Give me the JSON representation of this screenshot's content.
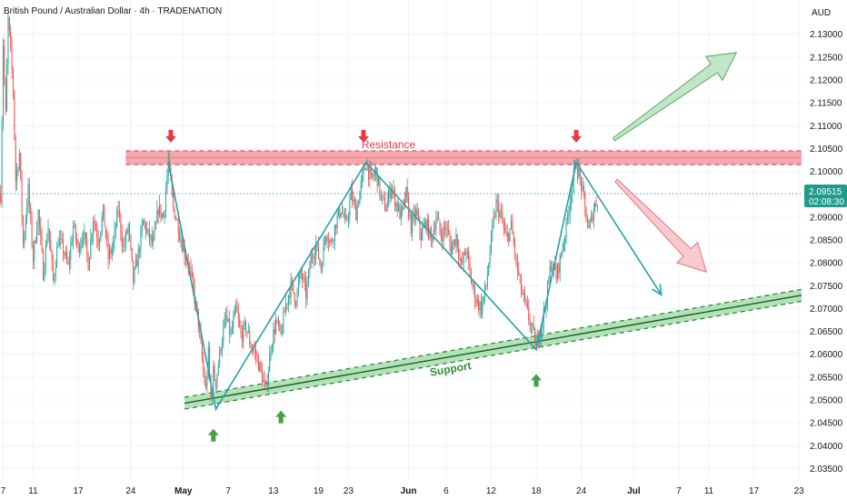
{
  "chart_data": {
    "type": "candlestick",
    "title": "British Pound / Australian Dollar · 4h · TRADENATION",
    "currency": "AUD",
    "ylim": [
      2.0325,
      2.1375
    ],
    "y_ticks": [
      "2.13000",
      "2.12500",
      "2.12000",
      "2.11500",
      "2.11000",
      "2.10500",
      "2.10000",
      "2.09500",
      "2.09000",
      "2.08500",
      "2.08000",
      "2.07500",
      "2.07000",
      "2.06500",
      "2.06000",
      "2.05500",
      "2.05000",
      "2.04500",
      "2.04000",
      "2.03500"
    ],
    "x_ticks": [
      {
        "label": "7",
        "bar": 2,
        "month": false
      },
      {
        "label": "11",
        "bar": 26,
        "month": false
      },
      {
        "label": "17",
        "bar": 62,
        "month": false
      },
      {
        "label": "24",
        "bar": 104,
        "month": false
      },
      {
        "label": "May",
        "bar": 146,
        "month": true
      },
      {
        "label": "7",
        "bar": 182,
        "month": false
      },
      {
        "label": "13",
        "bar": 218,
        "month": false
      },
      {
        "label": "19",
        "bar": 254,
        "month": false
      },
      {
        "label": "23",
        "bar": 278,
        "month": false
      },
      {
        "label": "Jun",
        "bar": 326,
        "month": true
      },
      {
        "label": "6",
        "bar": 356,
        "month": false
      },
      {
        "label": "12",
        "bar": 392,
        "month": false
      },
      {
        "label": "18",
        "bar": 428,
        "month": false
      },
      {
        "label": "24",
        "bar": 464,
        "month": false
      },
      {
        "label": "Jul",
        "bar": 506,
        "month": true
      },
      {
        "label": "7",
        "bar": 542,
        "month": false
      },
      {
        "label": "11",
        "bar": 566,
        "month": false
      },
      {
        "label": "17",
        "bar": 602,
        "month": false
      },
      {
        "label": "23",
        "bar": 638,
        "month": false
      }
    ],
    "total_bars": 642,
    "price_anchors": [
      [
        0,
        2.095
      ],
      [
        2,
        2.128
      ],
      [
        4,
        2.112
      ],
      [
        6,
        2.133
      ],
      [
        8,
        2.126
      ],
      [
        10,
        2.118
      ],
      [
        12,
        2.098
      ],
      [
        15,
        2.104
      ],
      [
        18,
        2.084
      ],
      [
        22,
        2.096
      ],
      [
        26,
        2.081
      ],
      [
        30,
        2.091
      ],
      [
        34,
        2.078
      ],
      [
        38,
        2.088
      ],
      [
        42,
        2.076
      ],
      [
        46,
        2.085
      ],
      [
        50,
        2.083
      ],
      [
        54,
        2.079
      ],
      [
        58,
        2.088
      ],
      [
        62,
        2.083
      ],
      [
        66,
        2.087
      ],
      [
        70,
        2.08
      ],
      [
        74,
        2.09
      ],
      [
        78,
        2.085
      ],
      [
        82,
        2.091
      ],
      [
        86,
        2.081
      ],
      [
        90,
        2.084
      ],
      [
        94,
        2.092
      ],
      [
        98,
        2.083
      ],
      [
        102,
        2.088
      ],
      [
        106,
        2.076
      ],
      [
        110,
        2.082
      ],
      [
        114,
        2.089
      ],
      [
        118,
        2.086
      ],
      [
        122,
        2.084
      ],
      [
        126,
        2.092
      ],
      [
        130,
        2.09
      ],
      [
        134,
        2.102
      ],
      [
        138,
        2.092
      ],
      [
        142,
        2.088
      ],
      [
        146,
        2.083
      ],
      [
        150,
        2.08
      ],
      [
        154,
        2.074
      ],
      [
        158,
        2.067
      ],
      [
        162,
        2.056
      ],
      [
        164,
        2.052
      ],
      [
        166,
        2.06
      ],
      [
        168,
        2.05
      ],
      [
        170,
        2.056
      ],
      [
        172,
        2.054
      ],
      [
        176,
        2.062
      ],
      [
        180,
        2.068
      ],
      [
        184,
        2.064
      ],
      [
        188,
        2.07
      ],
      [
        192,
        2.064
      ],
      [
        196,
        2.066
      ],
      [
        200,
        2.062
      ],
      [
        204,
        2.06
      ],
      [
        208,
        2.056
      ],
      [
        212,
        2.052
      ],
      [
        216,
        2.062
      ],
      [
        220,
        2.067
      ],
      [
        224,
        2.064
      ],
      [
        228,
        2.071
      ],
      [
        232,
        2.075
      ],
      [
        236,
        2.072
      ],
      [
        240,
        2.078
      ],
      [
        244,
        2.073
      ],
      [
        248,
        2.081
      ],
      [
        252,
        2.084
      ],
      [
        256,
        2.079
      ],
      [
        260,
        2.087
      ],
      [
        264,
        2.084
      ],
      [
        268,
        2.089
      ],
      [
        272,
        2.092
      ],
      [
        276,
        2.088
      ],
      [
        280,
        2.095
      ],
      [
        284,
        2.091
      ],
      [
        288,
        2.097
      ],
      [
        292,
        2.102
      ],
      [
        296,
        2.098
      ],
      [
        300,
        2.1
      ],
      [
        304,
        2.094
      ],
      [
        308,
        2.092
      ],
      [
        312,
        2.097
      ],
      [
        316,
        2.093
      ],
      [
        320,
        2.09
      ],
      [
        324,
        2.095
      ],
      [
        328,
        2.088
      ],
      [
        332,
        2.091
      ],
      [
        336,
        2.086
      ],
      [
        340,
        2.089
      ],
      [
        344,
        2.085
      ],
      [
        348,
        2.09
      ],
      [
        352,
        2.086
      ],
      [
        356,
        2.088
      ],
      [
        360,
        2.083
      ],
      [
        364,
        2.086
      ],
      [
        368,
        2.079
      ],
      [
        372,
        2.083
      ],
      [
        376,
        2.076
      ],
      [
        380,
        2.072
      ],
      [
        384,
        2.07
      ],
      [
        388,
        2.075
      ],
      [
        392,
        2.085
      ],
      [
        396,
        2.093
      ],
      [
        400,
        2.09
      ],
      [
        404,
        2.085
      ],
      [
        408,
        2.088
      ],
      [
        412,
        2.08
      ],
      [
        416,
        2.074
      ],
      [
        420,
        2.07
      ],
      [
        424,
        2.066
      ],
      [
        428,
        2.062
      ],
      [
        432,
        2.066
      ],
      [
        436,
        2.072
      ],
      [
        440,
        2.08
      ],
      [
        444,
        2.077
      ],
      [
        448,
        2.082
      ],
      [
        452,
        2.088
      ],
      [
        456,
        2.096
      ],
      [
        460,
        2.102
      ],
      [
        464,
        2.097
      ],
      [
        468,
        2.09
      ],
      [
        470,
        2.087
      ],
      [
        474,
        2.092
      ],
      [
        477,
        2.094
      ]
    ],
    "last_price": "2.09515",
    "countdown": "02:08:30",
    "resistance_zone": {
      "low": 2.1015,
      "high": 2.1045,
      "label": "Resistance"
    },
    "support_channel": {
      "start": [
        147,
        2.0493
      ],
      "end": [
        642,
        2.073
      ],
      "half_width": 0.0013,
      "label": "Support"
    },
    "pattern_line": [
      [
        134,
        2.102
      ],
      [
        172,
        2.048
      ],
      [
        292,
        2.102
      ],
      [
        428,
        2.061
      ],
      [
        460,
        2.102
      ],
      [
        528,
        2.073
      ]
    ],
    "arrows_down": [
      [
        136,
        2.1075
      ],
      [
        290,
        2.1075
      ],
      [
        460,
        2.1075
      ]
    ],
    "arrows_up": [
      [
        170,
        2.0425
      ],
      [
        224,
        2.0465
      ],
      [
        428,
        2.0545
      ]
    ],
    "big_arrow_up": {
      "from": [
        490,
        2.107
      ],
      "to": [
        588,
        2.126
      ]
    },
    "big_arrow_down": {
      "from": [
        492,
        2.098
      ],
      "to": [
        564,
        2.078
      ]
    },
    "colors": {
      "up": "#26a69a",
      "down": "#ef5350",
      "resistance": "#f28b8f",
      "support": "#7fcf8a",
      "pattern": "#2aa0a4",
      "price_tag": "#1f9d8c",
      "arrow_red": "#e53945",
      "arrow_green": "#43a047"
    }
  }
}
